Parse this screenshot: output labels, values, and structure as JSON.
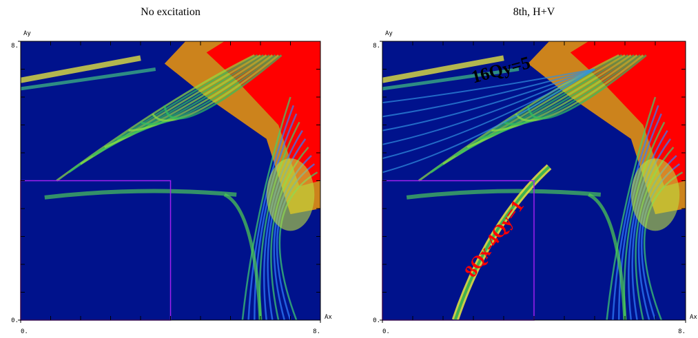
{
  "chart_data": [
    {
      "type": "heatmap",
      "title": "No excitation",
      "xlabel": "Ax",
      "ylabel": "Ay",
      "xlim": [
        0,
        8
      ],
      "ylim": [
        0,
        8
      ],
      "xticks": [
        {
          "value": 0,
          "label": "0."
        },
        {
          "value": 8,
          "label": "8."
        }
      ],
      "yticks": [
        {
          "value": 0,
          "label": "0."
        },
        {
          "value": 8,
          "label": "8."
        }
      ],
      "minor_ticks": [
        0.8,
        1.6,
        2.4,
        3.2,
        4,
        4.8,
        5.6,
        6.4,
        7.2
      ],
      "region": {
        "xlim": [
          0,
          4
        ],
        "ylim": [
          0,
          4
        ],
        "color": "#a020f0"
      },
      "background": "#00128c"
    },
    {
      "type": "heatmap",
      "title": "8th, H+V",
      "xlabel": "Ax",
      "ylabel": "Ay",
      "xlim": [
        0,
        8
      ],
      "ylim": [
        0,
        8
      ],
      "xticks": [
        {
          "value": 0,
          "label": "0."
        },
        {
          "value": 8,
          "label": "8."
        }
      ],
      "yticks": [
        {
          "value": 0,
          "label": "0."
        },
        {
          "value": 8,
          "label": "8."
        }
      ],
      "minor_ticks": [
        0.8,
        1.6,
        2.4,
        3.2,
        4,
        4.8,
        5.6,
        6.4,
        7.2
      ],
      "region": {
        "xlim": [
          0,
          4
        ],
        "ylim": [
          0,
          4
        ],
        "color": "#a020f0"
      },
      "background": "#00128c",
      "annotations": [
        {
          "text": "16Qy=5",
          "color": "#000000"
        },
        {
          "text": "8Qx-4Qy=1",
          "color": "#ff0000"
        }
      ]
    }
  ]
}
